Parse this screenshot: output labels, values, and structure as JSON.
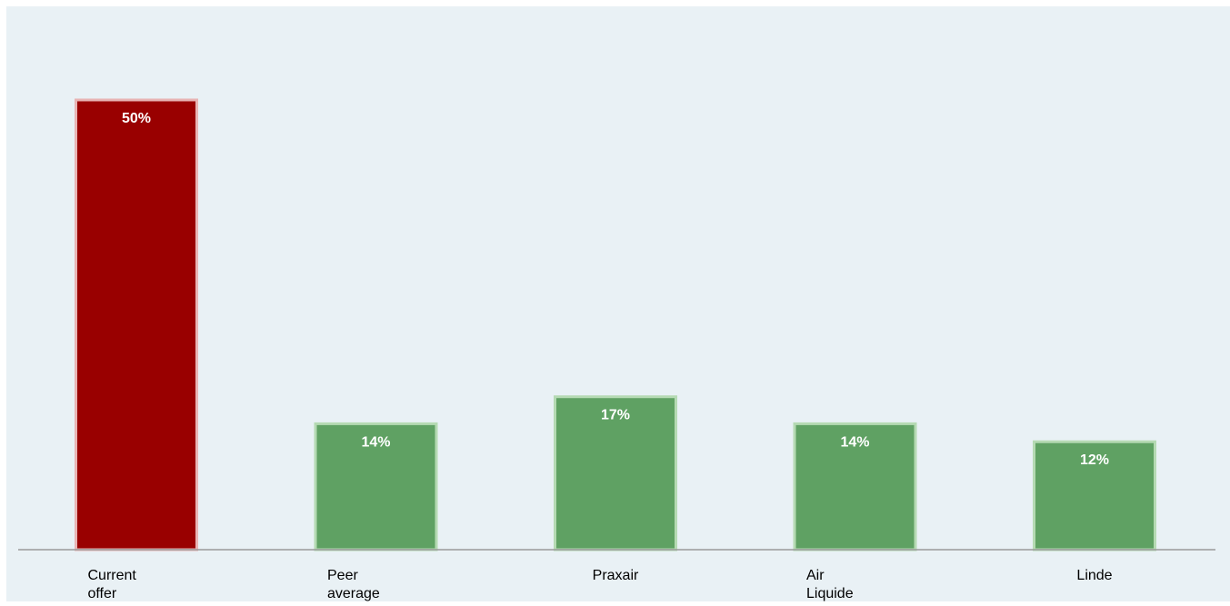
{
  "chart_data": {
    "type": "bar",
    "categories": [
      "Current offer",
      "Peer average",
      "Praxair",
      "Air Liquide",
      "Linde"
    ],
    "values": [
      50,
      14,
      17,
      14,
      12
    ],
    "data_labels": [
      "50%",
      "14%",
      "17%",
      "14%",
      "12%"
    ],
    "ylim": [
      0,
      60
    ],
    "grid": false,
    "title": "",
    "xlabel": "",
    "ylabel": "",
    "colors": {
      "highlight": "#990000",
      "peer": "#5fa163",
      "peer_border": "#b5dab3",
      "highlight_border": "#e8b4b4",
      "background": "#e9f1f5",
      "axis": "#999999",
      "label_text": "#ffffff",
      "category_text": "#000000"
    },
    "highlight_index": 0
  }
}
